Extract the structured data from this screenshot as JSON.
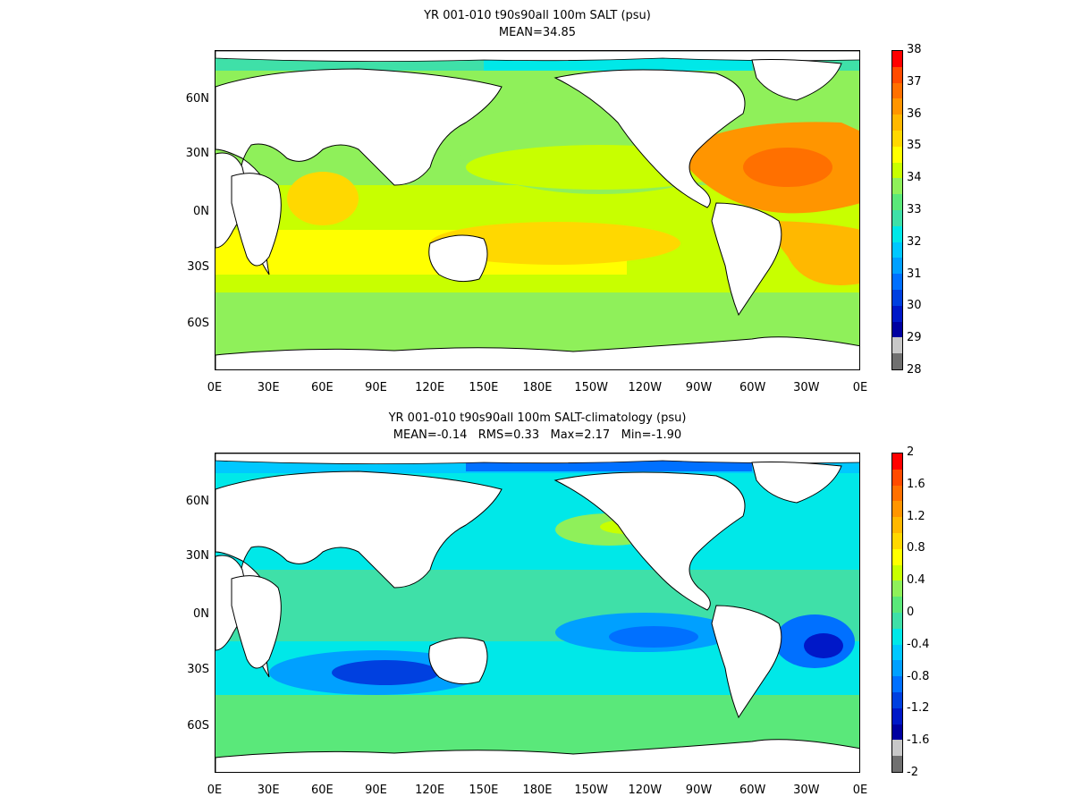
{
  "panels": [
    {
      "title_line1": "YR 001-010 t90s90all 100m SALT (psu)",
      "title_line2": "MEAN=34.85",
      "x_ticks": [
        "0E",
        "30E",
        "60E",
        "90E",
        "120E",
        "150E",
        "180E",
        "150W",
        "120W",
        "90W",
        "60W",
        "30W",
        "0E"
      ],
      "y_ticks": [
        "60N",
        "30N",
        "0N",
        "30S",
        "60S"
      ],
      "colorbar_labels": [
        "38",
        "37",
        "36",
        "35",
        "34",
        "33",
        "32",
        "31",
        "30",
        "29",
        "28"
      ],
      "colorbar_colors": [
        "#ff0000",
        "#ff4a00",
        "#ff7000",
        "#ff9500",
        "#ffb800",
        "#ffd800",
        "#ffff00",
        "#c8ff00",
        "#8ff05a",
        "#5ae87a",
        "#3fe0a8",
        "#00e8e8",
        "#00c8ff",
        "#00a0ff",
        "#0070ff",
        "#0040e0",
        "#0018c8",
        "#0000a0",
        "#c8c8c8",
        "#707070"
      ],
      "mean": 34.85
    },
    {
      "title_line1": "YR 001-010 t90s90all 100m SALT-climatology (psu)",
      "title_line2": "MEAN=-0.14   RMS=0.33   Max=2.17   Min=-1.90",
      "x_ticks": [
        "0E",
        "30E",
        "60E",
        "90E",
        "120E",
        "150E",
        "180E",
        "150W",
        "120W",
        "90W",
        "60W",
        "30W",
        "0E"
      ],
      "y_ticks": [
        "60N",
        "30N",
        "0N",
        "30S",
        "60S"
      ],
      "colorbar_labels": [
        "2",
        "1.6",
        "1.2",
        "0.8",
        "0.4",
        "0",
        "-0.4",
        "-0.8",
        "-1.2",
        "-1.6",
        "-2"
      ],
      "colorbar_colors": [
        "#ff0000",
        "#ff4a00",
        "#ff7000",
        "#ff9500",
        "#ffb800",
        "#ffd800",
        "#ffff00",
        "#c8ff00",
        "#8ff05a",
        "#5ae87a",
        "#3fe0a8",
        "#00e8e8",
        "#00c8ff",
        "#00a0ff",
        "#0070ff",
        "#0040e0",
        "#0018c8",
        "#0000a0",
        "#c8c8c8",
        "#707070"
      ],
      "mean": -0.14,
      "rms": 0.33,
      "max": 2.17,
      "min": -1.9
    }
  ]
}
